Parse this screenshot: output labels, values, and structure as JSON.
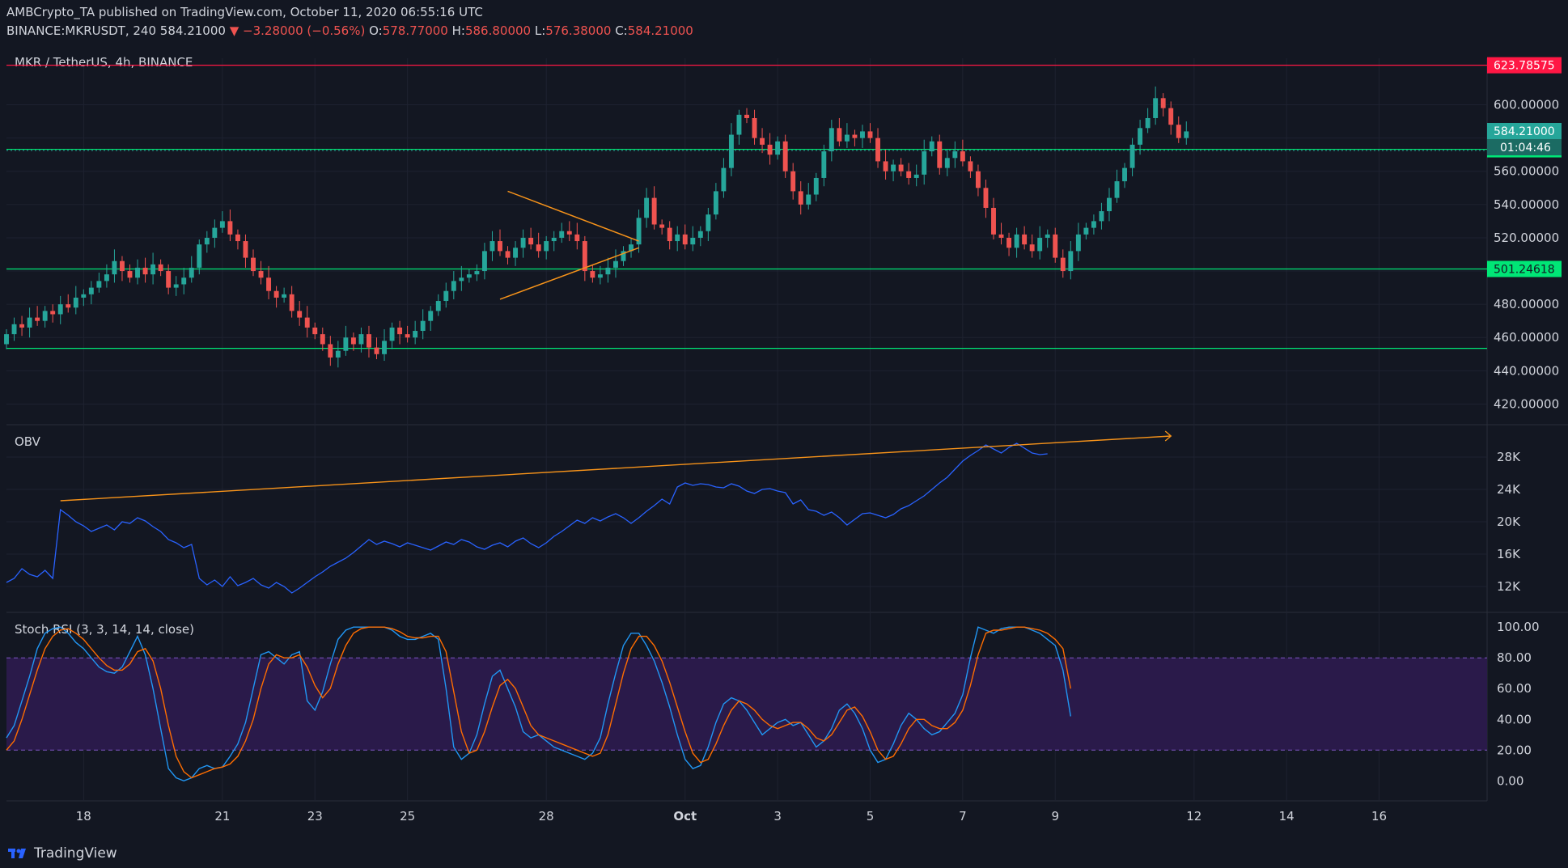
{
  "header": {
    "line1": "AMBCrypto_TA published on TradingView.com, October 11, 2020 06:55:16 UTC",
    "symbol": "BINANCE:MKRUSDT, 240",
    "last": "584.21000",
    "arrow": "▼",
    "change": "−3.28000 (−0.56%)",
    "o_label": "O:",
    "o": "578.77000",
    "h_label": "H:",
    "h": "586.80000",
    "l_label": "L:",
    "l": "576.38000",
    "c_label": "C:",
    "c": "584.21000"
  },
  "brand": {
    "name": "TradingView",
    "icon": "tradingview-logo-icon"
  },
  "colors": {
    "bg": "#131722",
    "up": "#26a69a",
    "down": "#ef5350",
    "orange": "#f7931a",
    "blue": "#2962ff",
    "purple": "#2a1a4a",
    "green": "#00e676",
    "red": "#ff1744",
    "grid": "#1e2230"
  },
  "chart_data": [
    {
      "type": "candlestick",
      "title": "MKR / TetherUS, 4h, BINANCE",
      "ylim": [
        410,
        628
      ],
      "y_ticks": [
        420,
        440,
        460,
        480,
        500,
        520,
        540,
        560,
        580,
        600
      ],
      "y_tick_labels": [
        "420.00000",
        "440.00000",
        "460.00000",
        "480.00000",
        "500.00000",
        "520.00000",
        "540.00000",
        "560.00000",
        "580.00000",
        "600.00000"
      ],
      "x_ticks": [
        {
          "label": "18",
          "idx": 14
        },
        {
          "label": "21",
          "idx": 32
        },
        {
          "label": "23",
          "idx": 44
        },
        {
          "label": "25",
          "idx": 56
        },
        {
          "label": "28",
          "idx": 74
        },
        {
          "label": "Oct",
          "idx": 92
        },
        {
          "label": "3",
          "idx": 104
        },
        {
          "label": "5",
          "idx": 116
        },
        {
          "label": "7",
          "idx": 128
        },
        {
          "label": "9",
          "idx": 140
        },
        {
          "label": "12",
          "idx": 158
        },
        {
          "label": "14",
          "idx": 170
        },
        {
          "label": "16",
          "idx": 182
        }
      ],
      "x_range": [
        4,
        196
      ],
      "closes": [
        462,
        468,
        466,
        472,
        470,
        476,
        474,
        480,
        478,
        484,
        486,
        490,
        494,
        498,
        506,
        500,
        496,
        502,
        498,
        504,
        500,
        490,
        492,
        496,
        502,
        516,
        520,
        526,
        530,
        522,
        518,
        508,
        500,
        496,
        488,
        484,
        486,
        476,
        472,
        466,
        462,
        456,
        448,
        452,
        460,
        456,
        462,
        454,
        450,
        458,
        466,
        462,
        460,
        464,
        470,
        476,
        482,
        488,
        494,
        496,
        498,
        500,
        512,
        518,
        512,
        508,
        514,
        520,
        516,
        512,
        518,
        520,
        524,
        522,
        518,
        500,
        496,
        498,
        502,
        506,
        512,
        516,
        532,
        544,
        528,
        526,
        518,
        522,
        516,
        520,
        524,
        534,
        548,
        562,
        582,
        594,
        592,
        580,
        576,
        570,
        578,
        560,
        548,
        540,
        546,
        556,
        572,
        586,
        578,
        582,
        580,
        584,
        580,
        566,
        560,
        564,
        560,
        556,
        558,
        572,
        578,
        562,
        568,
        572,
        566,
        560,
        550,
        538,
        522,
        520,
        514,
        522,
        516,
        512,
        520,
        522,
        508,
        500,
        512,
        522,
        526,
        530,
        536,
        544,
        554,
        562,
        576,
        586,
        592,
        604,
        598,
        588,
        580,
        584
      ],
      "opens": [
        456,
        462,
        468,
        466,
        472,
        470,
        476,
        474,
        480,
        478,
        484,
        486,
        490,
        494,
        498,
        506,
        500,
        496,
        502,
        498,
        504,
        500,
        490,
        492,
        496,
        502,
        516,
        520,
        526,
        530,
        522,
        518,
        508,
        500,
        496,
        488,
        484,
        486,
        476,
        472,
        466,
        462,
        456,
        448,
        452,
        460,
        456,
        462,
        454,
        450,
        458,
        466,
        462,
        460,
        464,
        470,
        476,
        482,
        488,
        494,
        496,
        498,
        500,
        512,
        518,
        512,
        508,
        514,
        520,
        516,
        512,
        518,
        520,
        524,
        522,
        518,
        500,
        496,
        498,
        502,
        506,
        512,
        516,
        532,
        544,
        528,
        526,
        518,
        522,
        516,
        520,
        524,
        534,
        548,
        562,
        582,
        594,
        592,
        580,
        576,
        570,
        578,
        560,
        548,
        540,
        546,
        556,
        572,
        586,
        578,
        582,
        580,
        584,
        580,
        566,
        560,
        564,
        560,
        556,
        558,
        572,
        578,
        562,
        568,
        572,
        566,
        560,
        550,
        538,
        522,
        520,
        514,
        522,
        516,
        512,
        520,
        522,
        508,
        500,
        512,
        522,
        526,
        530,
        536,
        544,
        554,
        562,
        576,
        586,
        592,
        604,
        598,
        588,
        580
      ],
      "pattern": "symmetrical triangle",
      "levels": [
        {
          "value": 623.78575,
          "label": "623.78575",
          "color": "#ff1744"
        },
        {
          "value": 573.21819,
          "label": "573.21819",
          "color": "#00e676"
        },
        {
          "value": 501.24618,
          "label": "501.24618",
          "color": "#00e676"
        },
        {
          "value": 453.5,
          "label": "",
          "color": "#00e676"
        }
      ],
      "price_tag": {
        "value": 584.21,
        "label": "584.21000",
        "timer": "01:04:46"
      },
      "dotted_level": 572.5
    },
    {
      "type": "line",
      "title": "OBV",
      "ylim": [
        9000,
        32000
      ],
      "y_ticks": [
        12000,
        16000,
        20000,
        24000,
        28000
      ],
      "y_tick_labels": [
        "12K",
        "16K",
        "20K",
        "24K",
        "28K"
      ],
      "values": [
        12500,
        13000,
        14200,
        13500,
        13200,
        14000,
        13000,
        21500,
        20800,
        20000,
        19500,
        18800,
        19200,
        19600,
        19000,
        20000,
        19800,
        20500,
        20100,
        19400,
        18800,
        17800,
        17400,
        16800,
        17200,
        13000,
        12200,
        12800,
        12000,
        13200,
        12100,
        12500,
        13000,
        12200,
        11800,
        12500,
        12000,
        11200,
        11800,
        12500,
        13200,
        13800,
        14500,
        15000,
        15500,
        16200,
        17000,
        17800,
        17200,
        17600,
        17300,
        16900,
        17400,
        17100,
        16800,
        16500,
        17000,
        17500,
        17200,
        17800,
        17500,
        16900,
        16600,
        17100,
        17400,
        16900,
        17600,
        18000,
        17300,
        16800,
        17400,
        18200,
        18800,
        19500,
        20200,
        19800,
        20500,
        20100,
        20600,
        21000,
        20500,
        19800,
        20500,
        21300,
        22000,
        22800,
        22200,
        24300,
        24800,
        24500,
        24700,
        24600,
        24300,
        24200,
        24700,
        24400,
        23800,
        23500,
        24000,
        24100,
        23800,
        23600,
        22200,
        22700,
        21500,
        21300,
        20800,
        21200,
        20500,
        19600,
        20300,
        21000,
        21100,
        20800,
        20500,
        20900,
        21600,
        22000,
        22600,
        23200,
        24000,
        24800,
        25500,
        26500,
        27500,
        28200,
        28800,
        29500,
        29000,
        28500,
        29200,
        29700,
        29100,
        28500,
        28300,
        28400
      ],
      "trendline": "rising",
      "x_ticks_shared": true
    },
    {
      "type": "line",
      "title": "Stoch RSI (3, 3, 14, 14, close)",
      "ylim": [
        -13,
        108
      ],
      "y_ticks": [
        0,
        20,
        40,
        60,
        80,
        100
      ],
      "y_tick_labels": [
        "0.00",
        "20.00",
        "40.00",
        "60.00",
        "80.00",
        "100.00"
      ],
      "band": [
        20,
        80
      ],
      "series": [
        {
          "color": "#2196f3",
          "values": [
            28,
            36,
            52,
            68,
            86,
            96,
            99,
            100,
            96,
            90,
            86,
            80,
            74,
            71,
            70,
            74,
            84,
            94,
            82,
            60,
            34,
            8,
            2,
            0,
            2,
            8,
            10,
            8,
            9,
            16,
            24,
            38,
            60,
            82,
            84,
            80,
            76,
            82,
            84,
            52,
            46,
            58,
            76,
            92,
            98,
            100,
            100,
            100,
            100,
            100,
            98,
            94,
            92,
            92,
            94,
            96,
            92,
            60,
            22,
            14,
            18,
            30,
            50,
            68,
            72,
            60,
            48,
            32,
            28,
            30,
            26,
            22,
            20,
            18,
            16,
            14,
            18,
            28,
            50,
            70,
            88,
            96,
            96,
            88,
            78,
            64,
            48,
            30,
            14,
            8,
            10,
            22,
            38,
            50,
            54,
            52,
            46,
            38,
            30,
            34,
            38,
            40,
            36,
            38,
            30,
            22,
            26,
            34,
            46,
            50,
            44,
            34,
            20,
            12,
            14,
            24,
            36,
            44,
            40,
            34,
            30,
            32,
            38,
            44,
            56,
            80,
            100,
            98,
            96,
            99,
            100,
            100,
            100,
            98,
            96,
            92,
            88,
            72,
            42
          ]
        },
        {
          "color": "#ff6d00",
          "values": [
            20,
            26,
            40,
            56,
            72,
            86,
            94,
            98,
            99,
            96,
            92,
            86,
            80,
            75,
            72,
            72,
            76,
            84,
            86,
            78,
            60,
            36,
            16,
            6,
            2,
            4,
            6,
            8,
            9,
            11,
            16,
            26,
            40,
            60,
            76,
            82,
            80,
            80,
            82,
            74,
            62,
            54,
            60,
            76,
            88,
            96,
            99,
            100,
            100,
            100,
            99,
            97,
            94,
            93,
            93,
            94,
            94,
            84,
            58,
            32,
            18,
            20,
            32,
            48,
            62,
            66,
            60,
            48,
            36,
            30,
            28,
            26,
            24,
            22,
            20,
            18,
            16,
            18,
            30,
            50,
            70,
            86,
            94,
            94,
            88,
            78,
            64,
            48,
            32,
            18,
            12,
            14,
            24,
            36,
            46,
            52,
            50,
            46,
            40,
            36,
            34,
            36,
            38,
            38,
            34,
            28,
            26,
            30,
            38,
            46,
            48,
            42,
            32,
            20,
            14,
            16,
            24,
            34,
            40,
            40,
            36,
            34,
            34,
            38,
            46,
            62,
            82,
            96,
            98,
            98,
            99,
            100,
            100,
            99,
            98,
            96,
            92,
            86,
            60
          ]
        }
      ]
    }
  ]
}
